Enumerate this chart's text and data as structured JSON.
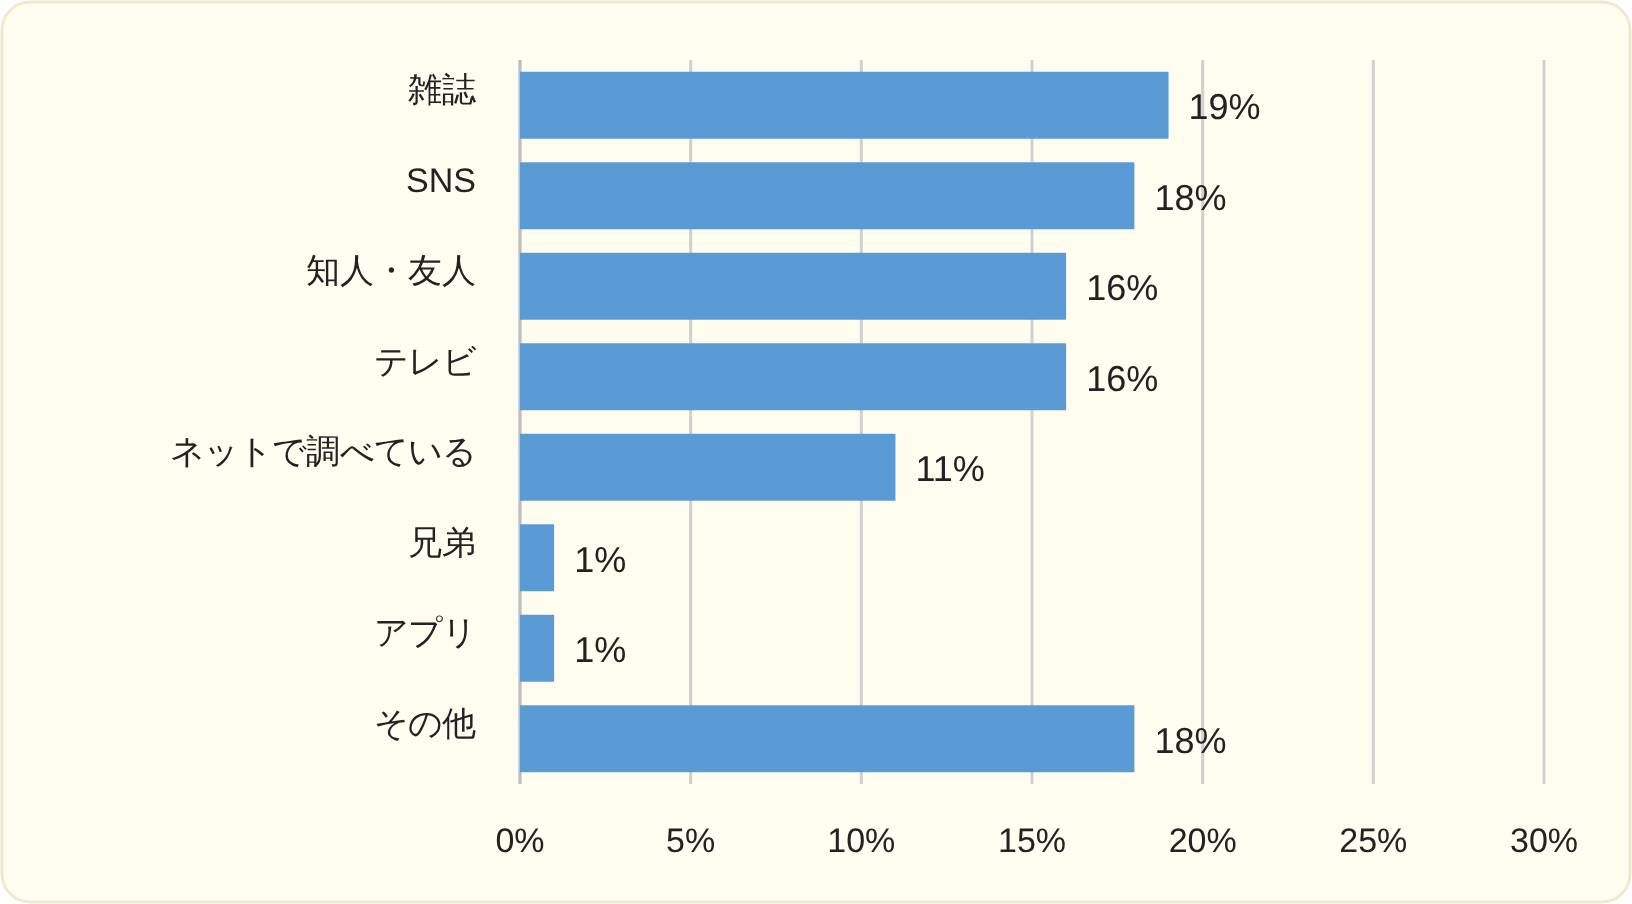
{
  "chart_data": {
    "type": "bar",
    "orientation": "horizontal",
    "categories": [
      "雑誌",
      "SNS",
      "知人・友人",
      "テレビ",
      "ネットで調べている",
      "兄弟",
      "アプリ",
      "その他"
    ],
    "values": [
      19,
      18,
      16,
      16,
      11,
      1,
      1,
      18
    ],
    "value_labels": [
      "19%",
      "18%",
      "16%",
      "16%",
      "11%",
      "1%",
      "1%",
      "18%"
    ],
    "color": "#5b9bd5",
    "xlim": [
      0,
      30
    ],
    "xticks": [
      {
        "value": 0,
        "label": "0%"
      },
      {
        "value": 5,
        "label": "5%"
      },
      {
        "value": 10,
        "label": "10%"
      },
      {
        "value": 15,
        "label": "15%"
      },
      {
        "value": 20,
        "label": "20%"
      },
      {
        "value": 25,
        "label": "25%"
      },
      {
        "value": 30,
        "label": "30%"
      }
    ],
    "grid": "x"
  }
}
